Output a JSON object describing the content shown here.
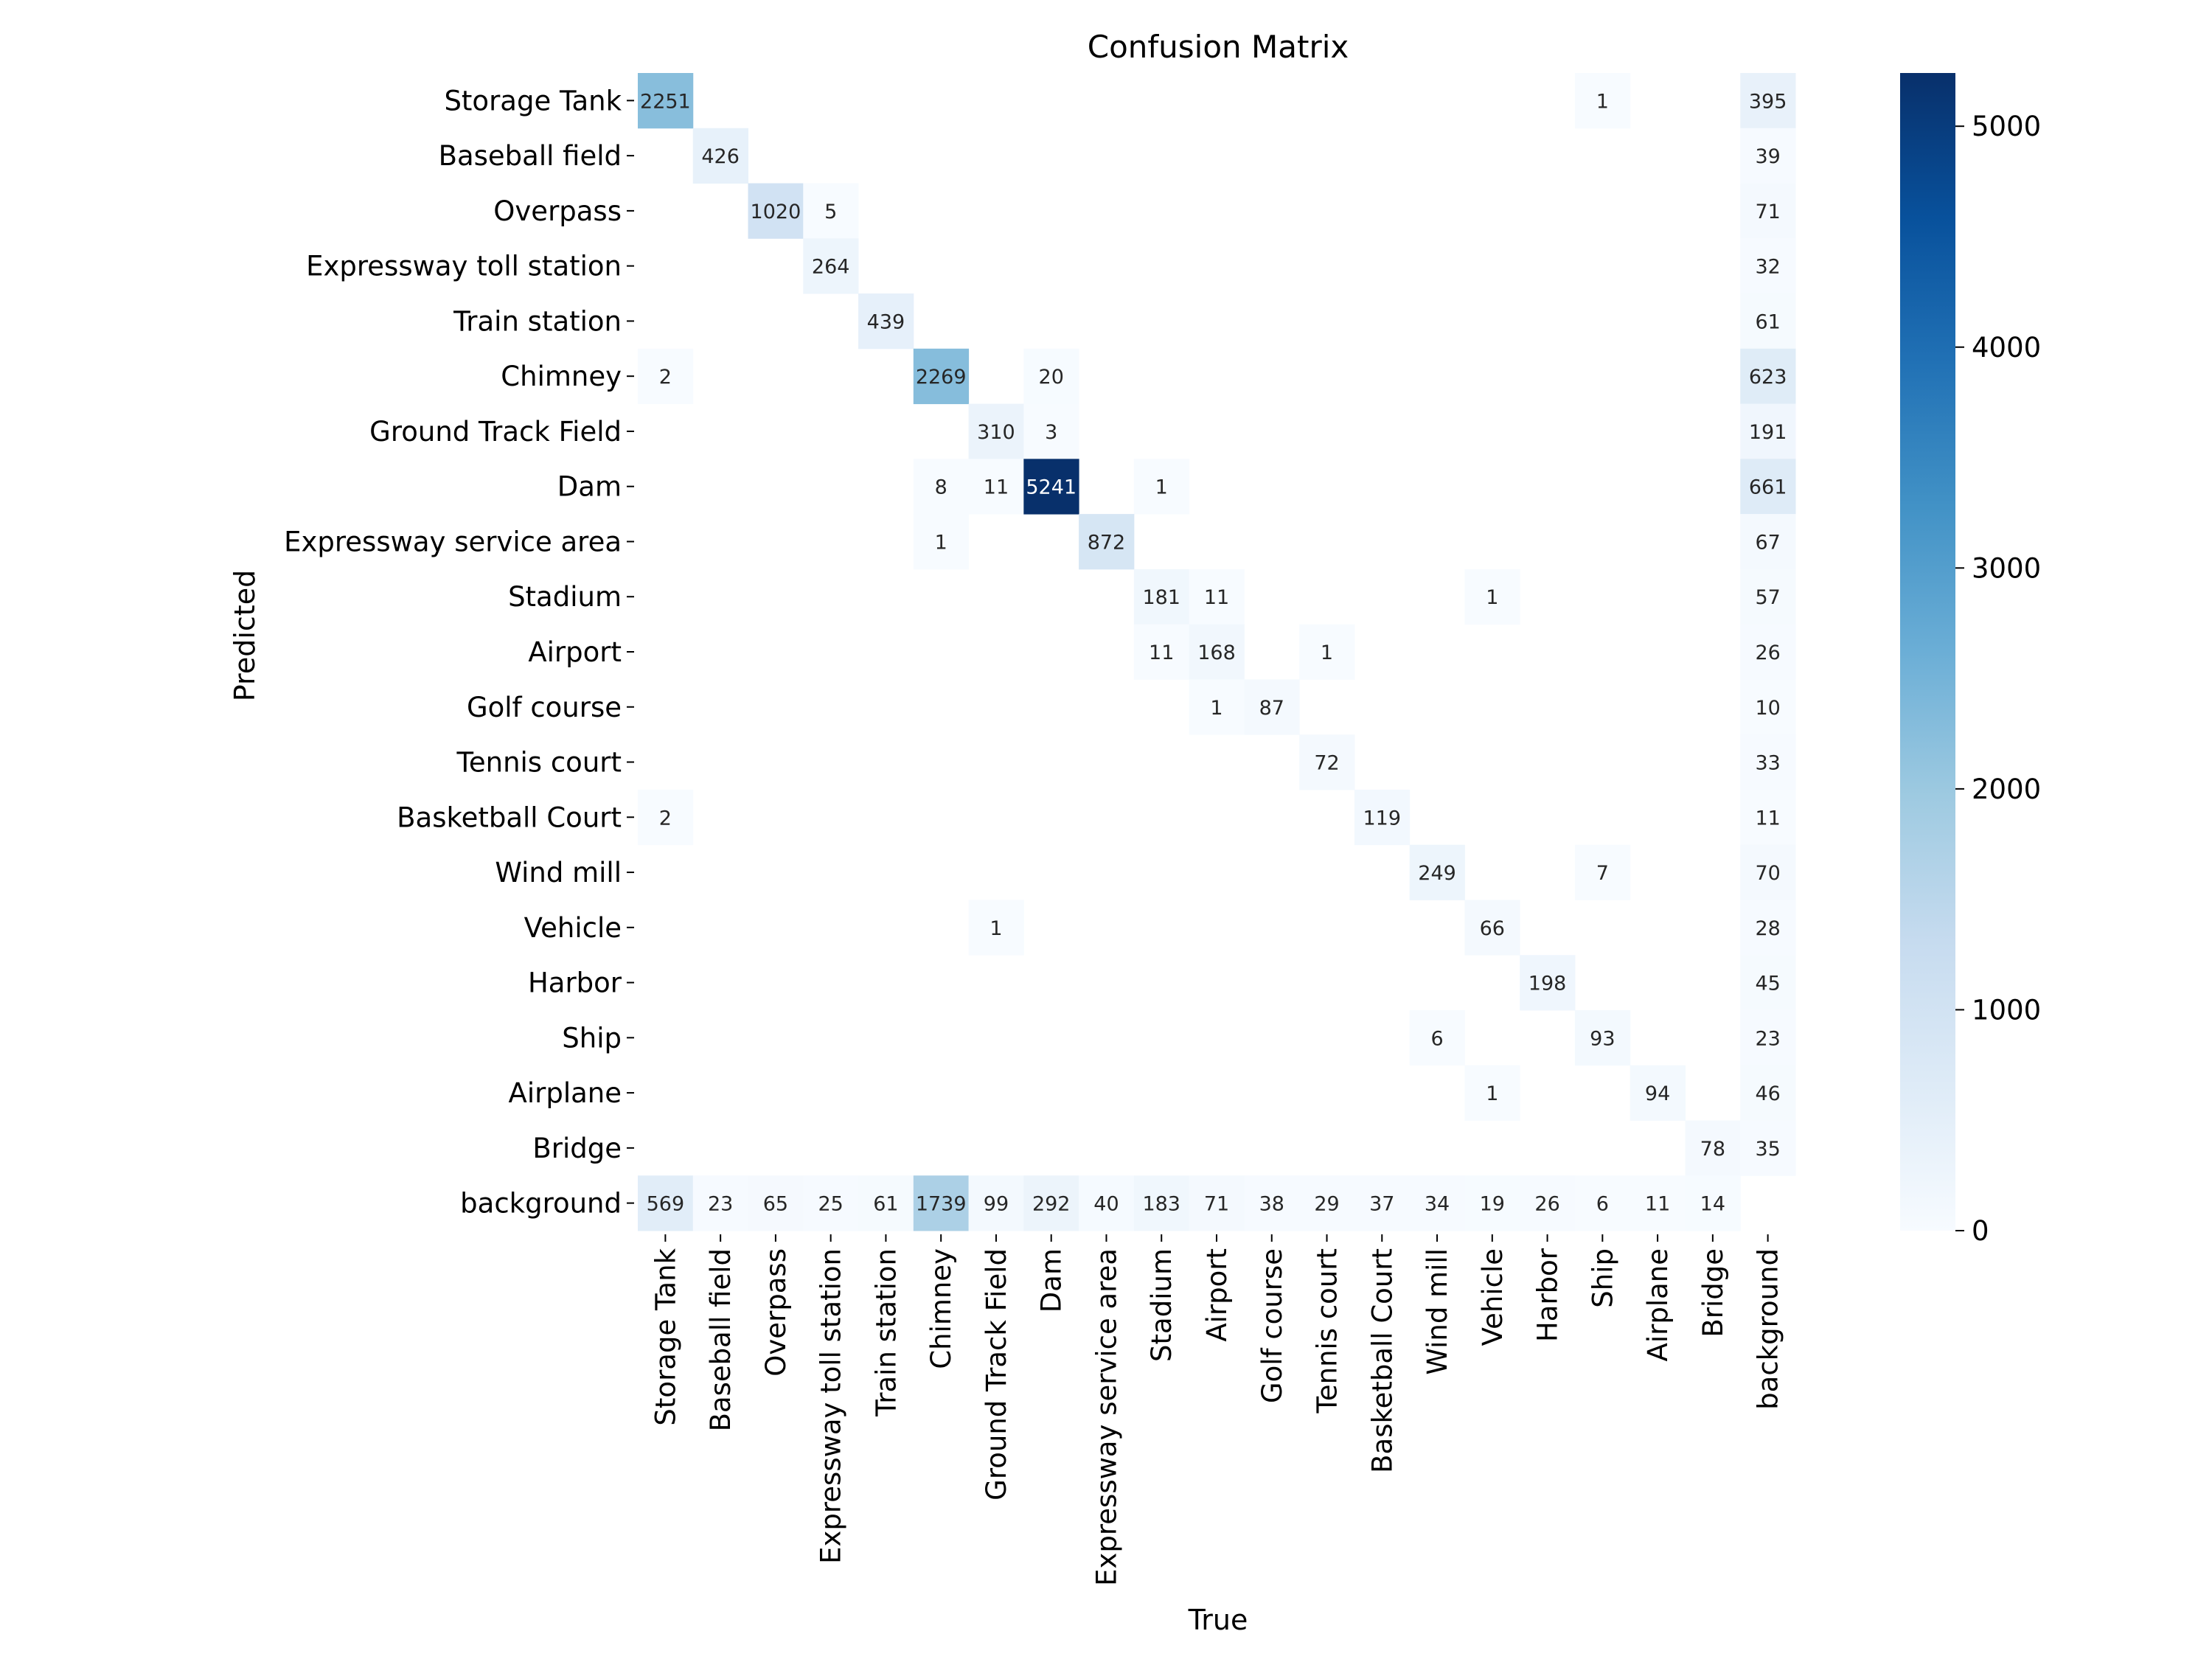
{
  "chart_data": {
    "type": "heatmap",
    "title": "Confusion Matrix",
    "xlabel": "True",
    "ylabel": "Predicted",
    "x_categories": [
      "Storage Tank",
      "Baseball field",
      "Overpass",
      "Expressway toll station",
      "Train station",
      "Chimney",
      "Ground Track Field",
      "Dam",
      "Expressway service area",
      "Stadium",
      "Airport",
      "Golf course",
      "Tennis court",
      "Basketball Court",
      "Wind mill",
      "Vehicle",
      "Harbor",
      "Ship",
      "Airplane",
      "Bridge",
      "background"
    ],
    "y_categories": [
      "Storage Tank",
      "Baseball field",
      "Overpass",
      "Expressway toll station",
      "Train station",
      "Chimney",
      "Ground Track Field",
      "Dam",
      "Expressway service area",
      "Stadium",
      "Airport",
      "Golf course",
      "Tennis court",
      "Basketball Court",
      "Wind mill",
      "Vehicle",
      "Harbor",
      "Ship",
      "Airplane",
      "Bridge",
      "background"
    ],
    "values": [
      [
        2251,
        0,
        0,
        0,
        0,
        0,
        0,
        0,
        0,
        0,
        0,
        0,
        0,
        0,
        0,
        0,
        0,
        1,
        0,
        0,
        395
      ],
      [
        0,
        426,
        0,
        0,
        0,
        0,
        0,
        0,
        0,
        0,
        0,
        0,
        0,
        0,
        0,
        0,
        0,
        0,
        0,
        0,
        39
      ],
      [
        0,
        0,
        1020,
        5,
        0,
        0,
        0,
        0,
        0,
        0,
        0,
        0,
        0,
        0,
        0,
        0,
        0,
        0,
        0,
        0,
        71
      ],
      [
        0,
        0,
        0,
        264,
        0,
        0,
        0,
        0,
        0,
        0,
        0,
        0,
        0,
        0,
        0,
        0,
        0,
        0,
        0,
        0,
        32
      ],
      [
        0,
        0,
        0,
        0,
        439,
        0,
        0,
        0,
        0,
        0,
        0,
        0,
        0,
        0,
        0,
        0,
        0,
        0,
        0,
        0,
        61
      ],
      [
        2,
        0,
        0,
        0,
        0,
        2269,
        0,
        20,
        0,
        0,
        0,
        0,
        0,
        0,
        0,
        0,
        0,
        0,
        0,
        0,
        623
      ],
      [
        0,
        0,
        0,
        0,
        0,
        0,
        310,
        3,
        0,
        0,
        0,
        0,
        0,
        0,
        0,
        0,
        0,
        0,
        0,
        0,
        191
      ],
      [
        0,
        0,
        0,
        0,
        0,
        8,
        11,
        5241,
        0,
        1,
        0,
        0,
        0,
        0,
        0,
        0,
        0,
        0,
        0,
        0,
        661
      ],
      [
        0,
        0,
        0,
        0,
        0,
        1,
        0,
        0,
        872,
        0,
        0,
        0,
        0,
        0,
        0,
        0,
        0,
        0,
        0,
        0,
        67
      ],
      [
        0,
        0,
        0,
        0,
        0,
        0,
        0,
        0,
        0,
        181,
        11,
        0,
        0,
        0,
        0,
        1,
        0,
        0,
        0,
        0,
        57
      ],
      [
        0,
        0,
        0,
        0,
        0,
        0,
        0,
        0,
        0,
        11,
        168,
        0,
        1,
        0,
        0,
        0,
        0,
        0,
        0,
        0,
        26
      ],
      [
        0,
        0,
        0,
        0,
        0,
        0,
        0,
        0,
        0,
        0,
        1,
        87,
        0,
        0,
        0,
        0,
        0,
        0,
        0,
        0,
        10
      ],
      [
        0,
        0,
        0,
        0,
        0,
        0,
        0,
        0,
        0,
        0,
        0,
        0,
        72,
        0,
        0,
        0,
        0,
        0,
        0,
        0,
        33
      ],
      [
        2,
        0,
        0,
        0,
        0,
        0,
        0,
        0,
        0,
        0,
        0,
        0,
        0,
        119,
        0,
        0,
        0,
        0,
        0,
        0,
        11
      ],
      [
        0,
        0,
        0,
        0,
        0,
        0,
        0,
        0,
        0,
        0,
        0,
        0,
        0,
        0,
        249,
        0,
        0,
        7,
        0,
        0,
        70
      ],
      [
        0,
        0,
        0,
        0,
        0,
        0,
        1,
        0,
        0,
        0,
        0,
        0,
        0,
        0,
        0,
        66,
        0,
        0,
        0,
        0,
        28
      ],
      [
        0,
        0,
        0,
        0,
        0,
        0,
        0,
        0,
        0,
        0,
        0,
        0,
        0,
        0,
        0,
        0,
        198,
        0,
        0,
        0,
        45
      ],
      [
        0,
        0,
        0,
        0,
        0,
        0,
        0,
        0,
        0,
        0,
        0,
        0,
        0,
        0,
        6,
        0,
        0,
        93,
        0,
        0,
        23
      ],
      [
        0,
        0,
        0,
        0,
        0,
        0,
        0,
        0,
        0,
        0,
        0,
        0,
        0,
        0,
        0,
        1,
        0,
        0,
        94,
        0,
        46
      ],
      [
        0,
        0,
        0,
        0,
        0,
        0,
        0,
        0,
        0,
        0,
        0,
        0,
        0,
        0,
        0,
        0,
        0,
        0,
        0,
        78,
        35
      ],
      [
        569,
        23,
        65,
        25,
        61,
        1739,
        99,
        292,
        40,
        183,
        71,
        38,
        29,
        37,
        34,
        19,
        26,
        6,
        11,
        14,
        0
      ]
    ],
    "zero_cells_shown": false,
    "colorbar": {
      "range": [
        0,
        5241
      ],
      "ticks": [
        0,
        1000,
        2000,
        3000,
        4000,
        5000
      ],
      "colormap": "Blues",
      "colors": [
        "#f7fbff",
        "#deebf7",
        "#c6dbef",
        "#9ecae1",
        "#6baed6",
        "#4292c6",
        "#2171b5",
        "#08519c",
        "#08306b"
      ]
    },
    "grid": false
  }
}
